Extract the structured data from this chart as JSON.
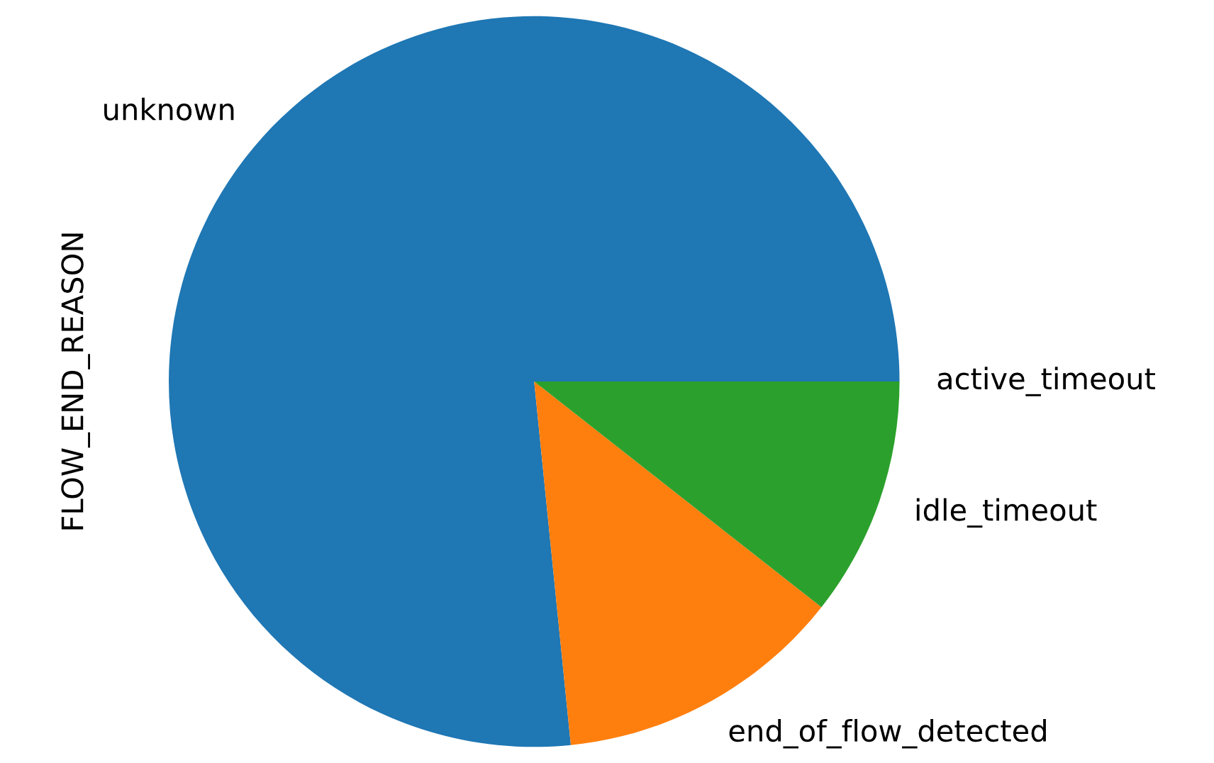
{
  "chart_data": {
    "type": "pie",
    "ylabel": "FLOW_END_REASON",
    "categories": [
      "unknown",
      "end_of_flow_detected",
      "idle_timeout",
      "active_timeout"
    ],
    "values": [
      76.6,
      12.8,
      10.6,
      0.0
    ],
    "colors": [
      "#1f77b4",
      "#ff7f0e",
      "#2ca02c",
      "#d62728"
    ]
  }
}
